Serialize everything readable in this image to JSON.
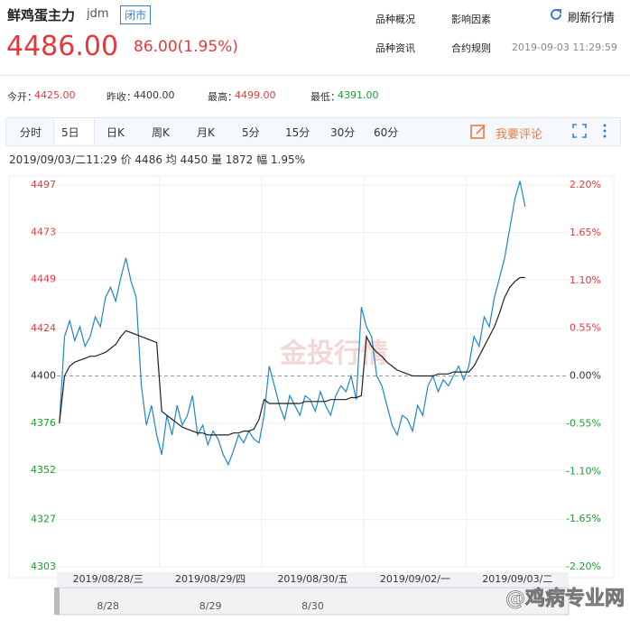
{
  "header": {
    "name": "鲜鸡蛋主力",
    "code": "jdm",
    "status": "闭市",
    "links": [
      "品种概况",
      "影响因素",
      "品种资讯",
      "合约规则"
    ],
    "refresh": "刷新行情",
    "time": "2019-09-03 11:29:59",
    "price": "4486.00",
    "change": "86.00(1.95%)"
  },
  "stats": [
    {
      "label": "今开：",
      "value": "4425.00"
    },
    {
      "label": "昨收：",
      "value": "4400.00"
    },
    {
      "label": "最高：",
      "value": "4499.00"
    },
    {
      "label": "最低：",
      "value": "4391.00"
    }
  ],
  "tabs": [
    "分时",
    "5日",
    "日K",
    "周K",
    "月K",
    "5分",
    "15分",
    "30分",
    "60分"
  ],
  "active_tab": 1,
  "comment": "我要评论",
  "info": "2019/09/03/二11:29 价 4486 均 4450 量 1872 幅 1.95%",
  "chart_data": {
    "type": "line",
    "x_labels": [
      "2019/08/28/三",
      "2019/08/29/四",
      "2019/08/30/五",
      "2019/09/02/一",
      "2019/09/03/二"
    ],
    "series": [
      {
        "color": "#1f86c9",
        "values": [
          4376,
          4420,
          4428,
          4418,
          4425,
          4415,
          4420,
          4430,
          4425,
          4440,
          4445,
          4438,
          4450,
          4460,
          4448,
          4440,
          4395,
          4375,
          4385,
          4370,
          4360,
          4380,
          4370,
          4385,
          4375,
          4380,
          4390,
          4370,
          4375,
          4365,
          4372,
          4368,
          4360,
          4355,
          4362,
          4370,
          4366,
          4372,
          4368,
          4366,
          4380,
          4405,
          4395,
          4385,
          4378,
          4390,
          4385,
          4380,
          4390,
          4388,
          4382,
          4392,
          4385,
          4380,
          4390,
          4395,
          4392,
          4400,
          4388,
          4435,
          4425,
          4420,
          4400,
          4395,
          4385,
          4375,
          4370,
          4380,
          4378,
          4372,
          4385,
          4380,
          4395,
          4400,
          4392,
          4398,
          4395,
          4400,
          4405,
          4398,
          4405,
          4420,
          4415,
          4430,
          4425,
          4440,
          4450,
          4460,
          4475,
          4490,
          4499,
          4486
        ]
      },
      {
        "color": "#222222",
        "values": [
          4376,
          4400,
          4405,
          4407,
          4408,
          4409,
          4410,
          4410,
          4411,
          4412,
          4414,
          4416,
          4420,
          4423,
          4422,
          4421,
          4420,
          4419,
          4418,
          4417,
          4382,
          4380,
          4378,
          4376,
          4374,
          4373,
          4372,
          4371,
          4371,
          4370,
          4370,
          4370,
          4370,
          4370,
          4371,
          4371,
          4372,
          4372,
          4373,
          4378,
          4388,
          4386,
          4386,
          4386,
          4386,
          4386,
          4386,
          4386,
          4387,
          4387,
          4387,
          4387,
          4387,
          4388,
          4388,
          4388,
          4388,
          4389,
          4389,
          4390,
          4420,
          4415,
          4412,
          4410,
          4407,
          4405,
          4403,
          4402,
          4401,
          4400,
          4400,
          4400,
          4400,
          4400,
          4401,
          4401,
          4401,
          4402,
          4402,
          4402,
          4402,
          4405,
          4410,
          4415,
          4420,
          4425,
          4432,
          4440,
          4445,
          4448,
          4450,
          4450
        ]
      }
    ],
    "ylim": [
      4303,
      4497
    ],
    "yticks": [
      4497,
      4473,
      4449,
      4424,
      4400,
      4376,
      4352,
      4327,
      4303
    ],
    "y2lim": [
      -2.2,
      2.2
    ],
    "y2ticks": [
      {
        "value": 2.2,
        "label": "2.20%"
      },
      {
        "value": 1.65,
        "label": "1.65%"
      },
      {
        "value": 1.1,
        "label": "1.10%"
      },
      {
        "value": 0.55,
        "label": "0.55%"
      },
      {
        "value": 0,
        "label": "0.00%"
      },
      {
        "value": -0.55,
        "label": "-0.55%"
      },
      {
        "value": -1.1,
        "label": "-1.10%"
      },
      {
        "value": -1.65,
        "label": "-1.65%"
      },
      {
        "value": -2.2,
        "label": "-2.20%"
      }
    ],
    "up_color": "#e4393c",
    "down_color": "#1a9c2f",
    "navigator_labels": [
      "8/28",
      "8/29",
      "8/30"
    ],
    "logo": "金投行情",
    "watermark": "@鸡病专业网"
  }
}
